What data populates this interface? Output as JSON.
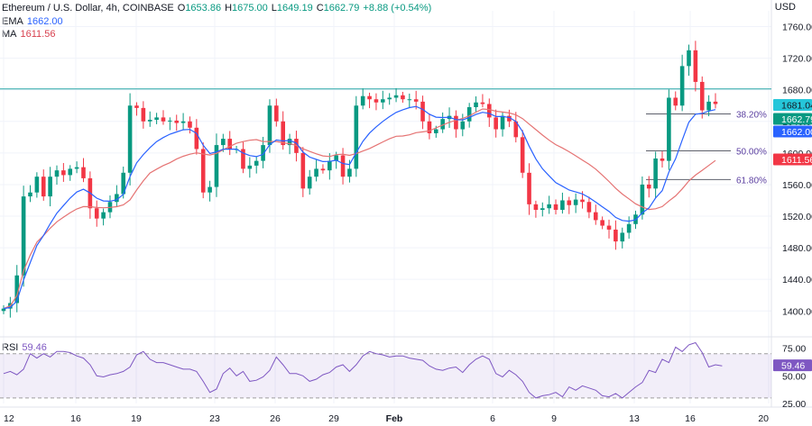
{
  "header": {
    "symbol": "Ethereum / U.S. Dollar, 4h, COINBASE",
    "ohlc": [
      {
        "k": "O",
        "v": "1653.86"
      },
      {
        "k": "H",
        "v": "1675.00"
      },
      {
        "k": "L",
        "v": "1649.19"
      },
      {
        "k": "C",
        "v": "1662.79"
      }
    ],
    "change": "+8.88 (+0.54%)",
    "ema_label": "EMA",
    "ema_value": "1662.00",
    "ma_label": "MA",
    "ma_value": "1611.56",
    "currency": "USD"
  },
  "colors": {
    "up": "#089981",
    "down": "#f23645",
    "ema": "#2962ff",
    "ma": "#e57373",
    "rsi": "#7e57c2",
    "resistance": "#26a6a6",
    "fib": "#5d606b",
    "grid": "#f0f3fa"
  },
  "chart_data": {
    "type": "candlestick",
    "interval": "4h",
    "ylim": [
      1380,
      1780
    ],
    "yticks": [
      "1760.00",
      "1720.00",
      "1680.00",
      "1640.00",
      "1600.00",
      "1560.00",
      "1520.00",
      "1480.00",
      "1440.00",
      "1400.00"
    ],
    "xticks": [
      "12",
      "16",
      "19",
      "23",
      "26",
      "29",
      "Feb",
      "6",
      "9",
      "13",
      "16",
      "20"
    ],
    "price_path": [
      1400,
      1403,
      1410,
      1445,
      1545,
      1550,
      1570,
      1545,
      1570,
      1578,
      1572,
      1580,
      1582,
      1568,
      1530,
      1517,
      1525,
      1538,
      1548,
      1575,
      1660,
      1657,
      1640,
      1642,
      1645,
      1640,
      1641,
      1638,
      1640,
      1632,
      1605,
      1550,
      1557,
      1610,
      1618,
      1605,
      1605,
      1580,
      1584,
      1590,
      1610,
      1660,
      1640,
      1610,
      1618,
      1600,
      1555,
      1570,
      1580,
      1578,
      1590,
      1597,
      1570,
      1580,
      1660,
      1672,
      1668,
      1664,
      1668,
      1670,
      1673,
      1668,
      1668,
      1665,
      1640,
      1625,
      1630,
      1643,
      1647,
      1630,
      1640,
      1658,
      1664,
      1662,
      1645,
      1630,
      1647,
      1640,
      1620,
      1575,
      1535,
      1528,
      1530,
      1535,
      1528,
      1540,
      1534,
      1541,
      1538,
      1525,
      1515,
      1508,
      1503,
      1488,
      1499,
      1510,
      1522,
      1560,
      1555,
      1593,
      1590,
      1670,
      1660,
      1710,
      1730,
      1690,
      1654,
      1665,
      1662
    ],
    "ema": {
      "label": "EMA",
      "value": 1662.0
    },
    "ma": {
      "label": "MA",
      "value": 1611.56
    },
    "last_price": 1662.79,
    "horizontal_line": 1681.04,
    "price_labels": [
      "1681.04",
      "1662.79",
      "1662.00",
      "1611.56"
    ],
    "fibonacci": [
      {
        "label": "38.20%",
        "price": 1649.5
      },
      {
        "label": "50.00%",
        "price": 1602.7
      },
      {
        "label": "61.80%",
        "price": 1566.3
      }
    ],
    "rsi": {
      "label": "RSI",
      "value": "59.46",
      "ylim": [
        25,
        82
      ],
      "band": [
        30,
        70
      ],
      "yticks": [
        "75.00",
        "50.00",
        "25.00"
      ],
      "values": [
        52,
        54,
        51,
        56,
        70,
        66,
        70,
        67,
        72,
        72,
        71,
        68,
        66,
        60,
        50,
        49,
        51,
        52,
        54,
        58,
        69,
        72,
        65,
        62,
        62,
        60,
        58,
        56,
        56,
        54,
        45,
        35,
        38,
        52,
        57,
        50,
        54,
        45,
        46,
        49,
        55,
        67,
        60,
        52,
        52,
        50,
        45,
        47,
        51,
        53,
        58,
        60,
        54,
        60,
        68,
        72,
        70,
        69,
        67,
        68,
        68,
        66,
        65,
        64,
        59,
        56,
        55,
        57,
        58,
        53,
        60,
        65,
        68,
        65,
        52,
        49,
        55,
        51,
        45,
        35,
        30,
        32,
        33,
        35,
        31,
        40,
        37,
        41,
        39,
        37,
        32,
        31,
        34,
        30,
        35,
        40,
        44,
        55,
        53,
        65,
        62,
        76,
        72,
        78,
        80,
        71,
        58,
        60,
        59
      ]
    }
  }
}
